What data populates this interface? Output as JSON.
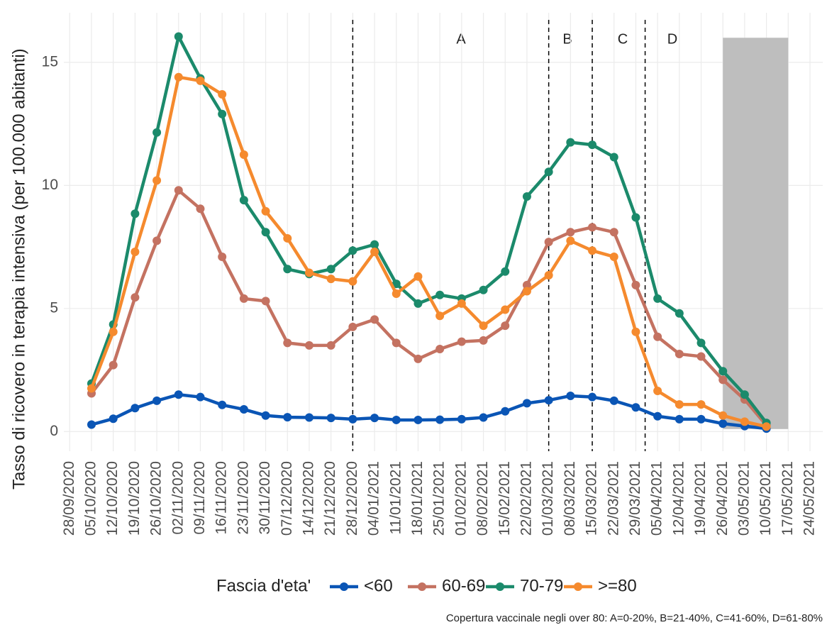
{
  "chart_data": {
    "type": "line",
    "y_label": "Tasso di ricovero in terapia intensiva (per 100.000 abitanti)",
    "legend_title": "Fascia d'eta'",
    "caption": "Copertura vaccinale negli over 80: A=0-20%, B=21-40%, C=41-60%, D=61-80%",
    "x": [
      "28/09/2020",
      "05/10/2020",
      "12/10/2020",
      "19/10/2020",
      "26/10/2020",
      "02/11/2020",
      "09/11/2020",
      "16/11/2020",
      "23/11/2020",
      "30/11/2020",
      "07/12/2020",
      "14/12/2020",
      "21/12/2020",
      "28/12/2020",
      "04/01/2021",
      "11/01/2021",
      "18/01/2021",
      "25/01/2021",
      "01/02/2021",
      "08/02/2021",
      "15/02/2021",
      "22/02/2021",
      "01/03/2021",
      "08/03/2021",
      "15/03/2021",
      "22/03/2021",
      "29/03/2021",
      "05/04/2021",
      "12/04/2021",
      "19/04/2021",
      "26/04/2021",
      "03/05/2021",
      "10/05/2021",
      "17/05/2021",
      "24/05/2021"
    ],
    "series": [
      {
        "name": "<60",
        "color": "#0a55b5",
        "values": [
          null,
          0.28,
          0.52,
          0.95,
          1.25,
          1.5,
          1.4,
          1.08,
          0.9,
          0.65,
          0.58,
          0.57,
          0.55,
          0.5,
          0.55,
          0.47,
          0.47,
          0.48,
          0.5,
          0.57,
          0.82,
          1.15,
          1.27,
          1.45,
          1.4,
          1.25,
          0.98,
          0.62,
          0.5,
          0.5,
          0.32,
          0.22,
          0.12,
          null,
          null
        ]
      },
      {
        "name": "60-69",
        "color": "#c47261",
        "values": [
          null,
          1.55,
          2.7,
          5.45,
          7.75,
          9.8,
          9.05,
          7.1,
          5.4,
          5.3,
          3.6,
          3.5,
          3.5,
          4.25,
          4.55,
          3.6,
          2.95,
          3.35,
          3.65,
          3.7,
          4.3,
          5.95,
          7.7,
          8.1,
          8.3,
          8.1,
          5.95,
          3.85,
          3.15,
          3.05,
          2.1,
          1.3,
          0.25,
          null,
          null
        ]
      },
      {
        "name": "70-79",
        "color": "#1b8a6b",
        "values": [
          null,
          1.95,
          4.35,
          8.85,
          12.15,
          16.05,
          14.35,
          12.9,
          9.4,
          8.1,
          6.6,
          6.4,
          6.6,
          7.35,
          7.6,
          6.0,
          5.2,
          5.55,
          5.4,
          5.75,
          6.5,
          9.55,
          10.55,
          11.75,
          11.65,
          11.15,
          8.7,
          5.4,
          4.8,
          3.6,
          2.45,
          1.5,
          0.35,
          null,
          null
        ]
      },
      {
        "name": ">=80",
        "color": "#f58a2e",
        "values": [
          null,
          1.75,
          4.05,
          7.3,
          10.2,
          14.4,
          14.25,
          13.7,
          11.25,
          8.95,
          7.85,
          6.45,
          6.2,
          6.1,
          7.3,
          5.6,
          6.3,
          4.7,
          5.2,
          4.3,
          4.95,
          5.7,
          6.35,
          7.75,
          7.35,
          7.1,
          4.05,
          1.65,
          1.1,
          1.1,
          0.65,
          0.4,
          0.2,
          null,
          null
        ]
      }
    ],
    "vlines": [
      "28/12/2020",
      "01/03/2021",
      "15/03/2021",
      "01/04/2021"
    ],
    "phases": [
      "A",
      "B",
      "C",
      "D"
    ],
    "shaded": {
      "x": [
        "26/04/2021",
        "17/05/2021"
      ],
      "y": [
        0.1,
        16
      ],
      "color": "#bebebe"
    },
    "ylim": [
      -0.8,
      16.9
    ],
    "yticks": [
      0,
      5,
      10,
      15
    ],
    "grid": true
  }
}
